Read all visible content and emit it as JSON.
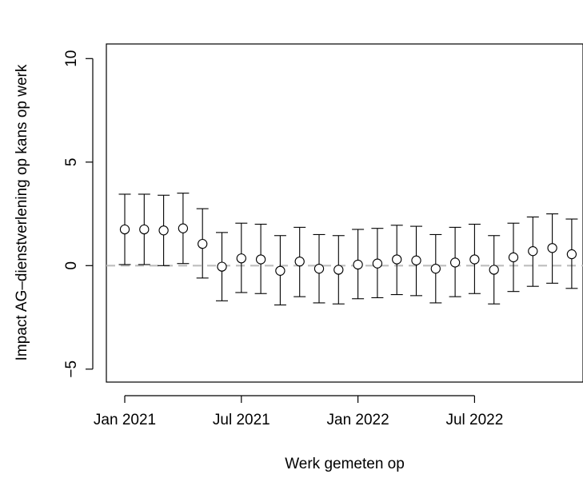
{
  "chart_data": {
    "type": "scatter",
    "title": "",
    "xlabel": "Werk gemeten op",
    "ylabel": "Impact AG–dienstverlening op kans op werk",
    "x_tick_labels": [
      "Jan 2021",
      "Jul 2021",
      "Jan 2022",
      "Jul 2022"
    ],
    "y_ticks": [
      -5,
      0,
      5,
      10
    ],
    "ylim": [
      -5.6,
      10.2
    ],
    "reference_line": {
      "y": 0,
      "style": "dashed",
      "color": "#bdbdbd"
    },
    "grid": false,
    "point_style": "open circle",
    "error_bars": true,
    "series": [
      {
        "x": [
          "2021-01",
          "2021-02",
          "2021-03",
          "2021-04",
          "2021-05",
          "2021-06",
          "2021-07",
          "2021-08",
          "2021-09",
          "2021-10",
          "2021-11",
          "2021-12",
          "2022-01",
          "2022-02",
          "2022-03",
          "2022-04",
          "2022-05",
          "2022-06",
          "2022-07",
          "2022-08",
          "2022-09",
          "2022-10",
          "2022-11",
          "2022-12"
        ],
        "values": [
          1.75,
          1.75,
          1.7,
          1.8,
          1.05,
          -0.05,
          0.35,
          0.3,
          -0.25,
          0.2,
          -0.15,
          -0.2,
          0.05,
          0.1,
          0.3,
          0.25,
          -0.15,
          0.15,
          0.3,
          -0.2,
          0.4,
          0.7,
          0.85,
          0.55
        ],
        "lower": [
          0.05,
          0.05,
          0.0,
          0.1,
          -0.6,
          -1.7,
          -1.3,
          -1.35,
          -1.9,
          -1.5,
          -1.8,
          -1.85,
          -1.6,
          -1.55,
          -1.4,
          -1.45,
          -1.8,
          -1.5,
          -1.35,
          -1.85,
          -1.25,
          -1.0,
          -0.85,
          -1.1
        ],
        "upper": [
          3.45,
          3.45,
          3.4,
          3.5,
          2.75,
          1.6,
          2.05,
          2.0,
          1.45,
          1.85,
          1.5,
          1.45,
          1.75,
          1.8,
          1.95,
          1.9,
          1.5,
          1.85,
          2.0,
          1.45,
          2.05,
          2.35,
          2.5,
          2.25
        ]
      }
    ]
  }
}
